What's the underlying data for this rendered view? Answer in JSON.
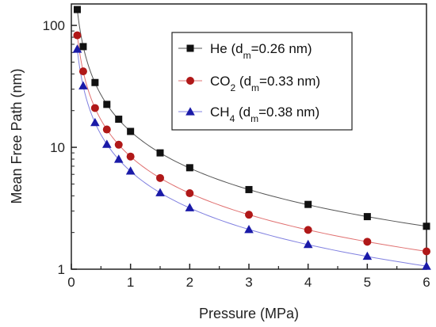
{
  "chart_data": {
    "type": "scatter",
    "xlabel": "Pressure (MPa)",
    "ylabel": "Mean Free Path (nm)",
    "xlim": [
      0,
      6
    ],
    "ylim": [
      1,
      150
    ],
    "yscale": "log",
    "xticks": [
      "0",
      "1",
      "2",
      "3",
      "4",
      "5",
      "6"
    ],
    "yticks": [
      {
        "value": 1,
        "label": "1"
      },
      {
        "value": 10,
        "label": "10"
      },
      {
        "value": 100,
        "label": "100"
      }
    ],
    "legend_position": "top-right",
    "series": [
      {
        "name_main": "He (d",
        "name_sub": "m",
        "name_tail": "=0.26 nm)",
        "name_pre_sub": "",
        "color": "#111111",
        "marker": "square",
        "line_color": "#555555",
        "x": [
          0.1,
          0.2,
          0.4,
          0.6,
          0.8,
          1.0,
          1.5,
          2.0,
          3.0,
          4.0,
          5.0,
          6.0
        ],
        "y": [
          135,
          67,
          34,
          22.5,
          17,
          13.5,
          9.0,
          6.8,
          4.5,
          3.4,
          2.7,
          2.25
        ]
      },
      {
        "name_main": "CO",
        "name_sub": "2",
        "name_tail": " (d",
        "name_sub2": "m",
        "name_tail2": "=0.33 nm)",
        "color": "#b01818",
        "marker": "circle",
        "line_color": "#e07070",
        "x": [
          0.1,
          0.2,
          0.4,
          0.6,
          0.8,
          1.0,
          1.5,
          2.0,
          3.0,
          4.0,
          5.0,
          6.0
        ],
        "y": [
          83,
          42,
          21,
          14,
          10.5,
          8.4,
          5.6,
          4.2,
          2.8,
          2.1,
          1.68,
          1.4
        ]
      },
      {
        "name_main": "CH",
        "name_sub": "4",
        "name_tail": " (d",
        "name_sub2": "m",
        "name_tail2": "=0.38 nm)",
        "color": "#1a1aa8",
        "marker": "triangle",
        "line_color": "#8080e0",
        "x": [
          0.1,
          0.2,
          0.4,
          0.6,
          0.8,
          1.0,
          1.5,
          2.0,
          3.0,
          4.0,
          5.0,
          6.0
        ],
        "y": [
          64,
          32,
          16,
          10.6,
          8.0,
          6.4,
          4.25,
          3.2,
          2.12,
          1.6,
          1.28,
          1.06
        ]
      }
    ]
  }
}
